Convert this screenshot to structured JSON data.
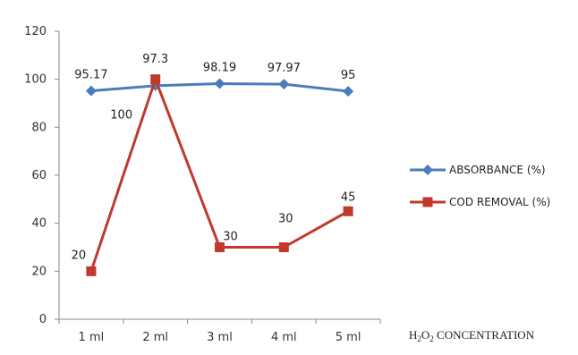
{
  "chart_data": {
    "type": "line",
    "categories": [
      "1 ml",
      "2 ml",
      "3 ml",
      "4 ml",
      "5 ml"
    ],
    "ylim": [
      0,
      120
    ],
    "yticks": [
      0,
      20,
      40,
      60,
      80,
      100,
      120
    ],
    "grid": false,
    "legend_position": "right",
    "xlabel": {
      "main": "H",
      "sub": "2",
      "mid": "O",
      "sub2": "2",
      "rest": " CONCENTRATION"
    },
    "ylabel": "",
    "title": "",
    "series": [
      {
        "name": "ABSORBANCE (%)",
        "color": "#4a7ebb",
        "marker": "diamond",
        "values": [
          95.17,
          97.3,
          98.19,
          97.97,
          95
        ],
        "labels": [
          "95.17",
          "97.3",
          "98.19",
          "97.97",
          "95"
        ]
      },
      {
        "name": "COD REMOVAL (%)",
        "color": "#c0392b",
        "marker": "square",
        "values": [
          20,
          100,
          30,
          30,
          45
        ],
        "labels": [
          "20",
          "100",
          "30",
          "30",
          "45"
        ]
      }
    ]
  }
}
